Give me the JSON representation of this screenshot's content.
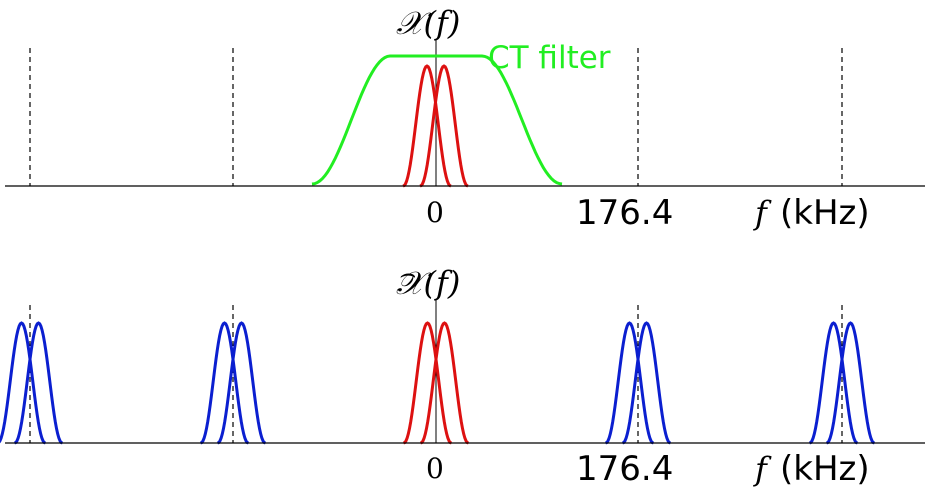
{
  "top_panel": {
    "title": "𝒳(f)",
    "filter_label": "CT filter",
    "tick_zero": "0",
    "tick_value": "176.4",
    "axis_var": "f",
    "axis_unit": "(kHz)"
  },
  "bottom_panel": {
    "title": "𝒳(f)",
    "title_hat": "⌢",
    "tick_zero": "0",
    "tick_value": "176.4",
    "axis_var": "f",
    "axis_unit": "(kHz)"
  },
  "colors": {
    "filter": "#22ee22",
    "baseband": "#dd1111",
    "images": "#0b1fd0",
    "axis": "#000000",
    "dashed": "#000000"
  }
}
